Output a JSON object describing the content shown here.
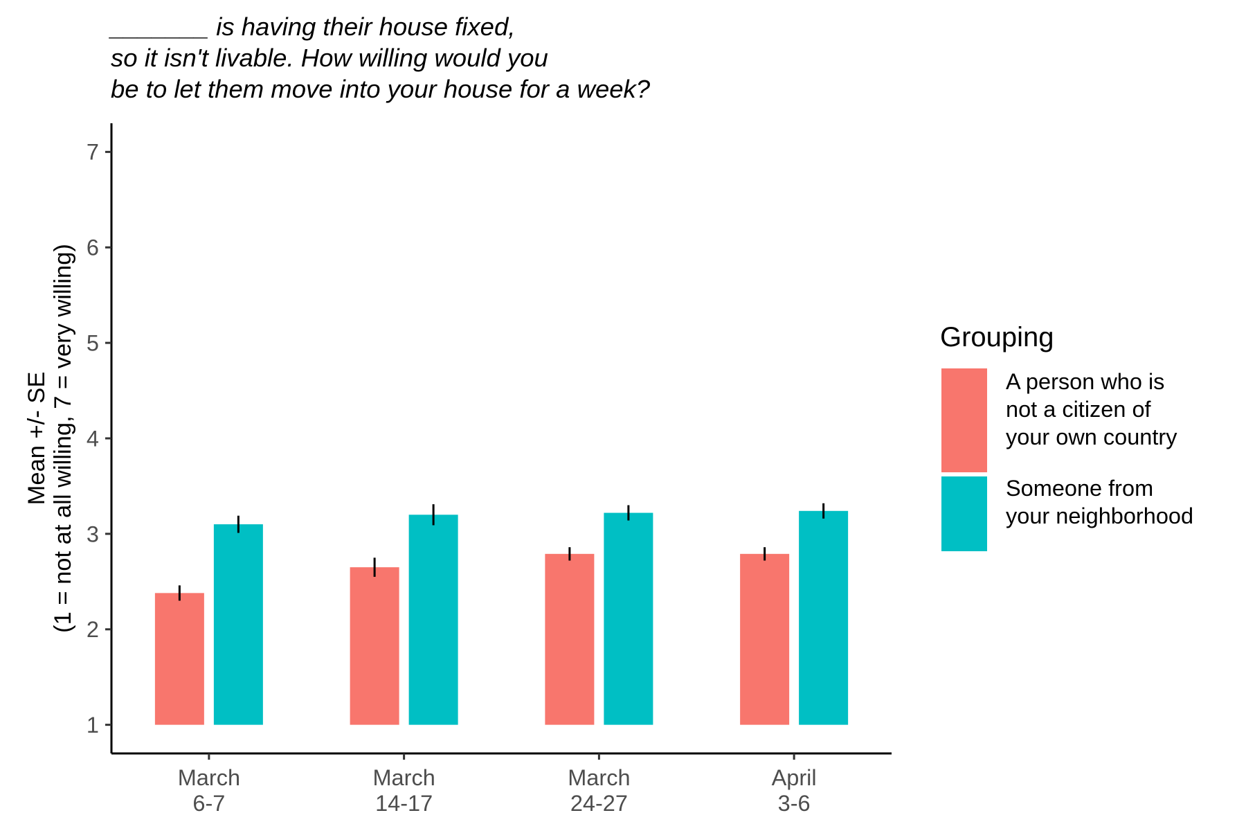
{
  "chart_data": {
    "type": "bar",
    "title_lines": [
      "_______ is having their house fixed,",
      "so it isn't livable. How willing would you",
      "be to let them move into your house for a week?"
    ],
    "ylabel_lines": [
      "Mean +/- SE",
      "(1 = not at all willing, 7 = very willing)"
    ],
    "xlabel": "",
    "categories": [
      [
        "March",
        "6-7"
      ],
      [
        "March",
        "14-17"
      ],
      [
        "March",
        "24-27"
      ],
      [
        "April",
        "3-6"
      ]
    ],
    "ylim": [
      0.7,
      7.3
    ],
    "bar_base": 1,
    "yticks": [
      1,
      2,
      3,
      4,
      5,
      6,
      7
    ],
    "grid": false,
    "legend": {
      "title": "Grouping",
      "position": "right"
    },
    "series": [
      {
        "name": [
          "A person who is",
          "not a citizen of",
          "your own country"
        ],
        "color": "#F8766D",
        "values": [
          2.38,
          2.65,
          2.79,
          2.79
        ],
        "se": [
          0.08,
          0.1,
          0.07,
          0.07
        ]
      },
      {
        "name": [
          "Someone from",
          "your neighborhood"
        ],
        "color": "#00BFC4",
        "values": [
          3.1,
          3.2,
          3.22,
          3.24
        ],
        "se": [
          0.09,
          0.11,
          0.08,
          0.08
        ]
      }
    ]
  }
}
